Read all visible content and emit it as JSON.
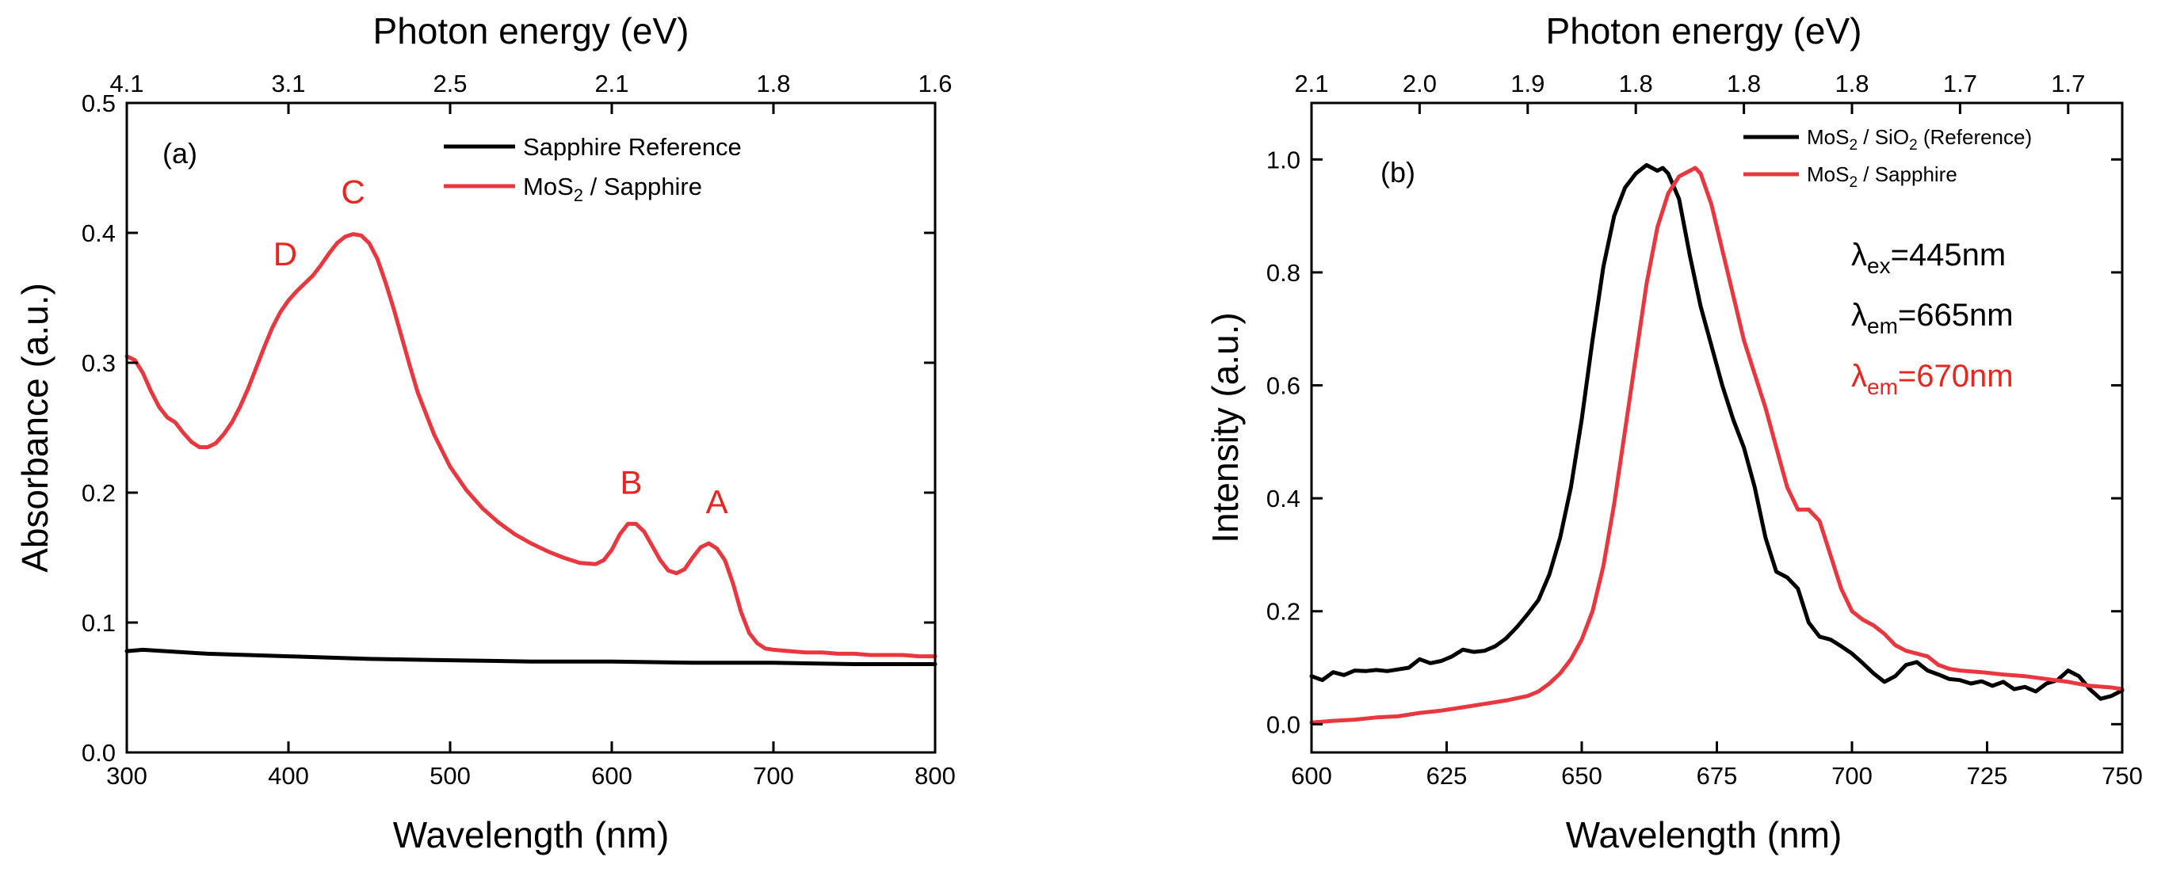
{
  "colors": {
    "black_series": "#000000",
    "red_series": "#e8373f",
    "annotation_red": "#e8251f"
  },
  "chart_data": [
    {
      "type": "line",
      "panel_label": "(a)",
      "xlabel": "Wavelength (nm)",
      "ylabel": "Absorbance (a.u.)",
      "top_axis_label": "Photon energy (eV)",
      "xlim": [
        300,
        800
      ],
      "ylim": [
        0.0,
        0.5
      ],
      "xticks": [
        "300",
        "400",
        "500",
        "600",
        "700",
        "800"
      ],
      "yticks": [
        "0.0",
        "0.1",
        "0.2",
        "0.3",
        "0.4",
        "0.5"
      ],
      "top_ticks": [
        {
          "label": "4.1",
          "wavelength": 300
        },
        {
          "label": "3.1",
          "wavelength": 400
        },
        {
          "label": "2.5",
          "wavelength": 500
        },
        {
          "label": "2.1",
          "wavelength": 600
        },
        {
          "label": "1.8",
          "wavelength": 700
        },
        {
          "label": "1.6",
          "wavelength": 800
        }
      ],
      "legend": [
        {
          "label": "Sapphire Reference",
          "color": "#000000"
        },
        {
          "label": "MoS",
          "sub": "2",
          "label_after": " / Sapphire",
          "color": "#e8373f"
        }
      ],
      "annotations": [
        {
          "text": "D",
          "x": 398,
          "y": 0.375
        },
        {
          "text": "C",
          "x": 440,
          "y": 0.423
        },
        {
          "text": "B",
          "x": 612,
          "y": 0.199
        },
        {
          "text": "A",
          "x": 665,
          "y": 0.184
        }
      ],
      "series": [
        {
          "name": "Sapphire Reference",
          "color": "#000000",
          "x": [
            300,
            310,
            350,
            400,
            450,
            500,
            550,
            600,
            650,
            700,
            750,
            800
          ],
          "y": [
            0.078,
            0.079,
            0.076,
            0.074,
            0.072,
            0.071,
            0.07,
            0.07,
            0.069,
            0.069,
            0.068,
            0.068
          ]
        },
        {
          "name": "MoS2 / Sapphire",
          "color": "#e8373f",
          "x": [
            300,
            305,
            310,
            315,
            320,
            325,
            330,
            335,
            340,
            345,
            350,
            355,
            360,
            365,
            370,
            375,
            380,
            385,
            390,
            395,
            400,
            405,
            410,
            415,
            420,
            425,
            430,
            435,
            440,
            445,
            450,
            455,
            460,
            465,
            470,
            475,
            480,
            490,
            500,
            510,
            520,
            530,
            540,
            550,
            560,
            570,
            580,
            590,
            595,
            600,
            605,
            610,
            615,
            620,
            625,
            630,
            635,
            640,
            645,
            650,
            655,
            660,
            665,
            670,
            675,
            680,
            685,
            690,
            695,
            700,
            710,
            720,
            730,
            740,
            750,
            760,
            770,
            780,
            790,
            800
          ],
          "y": [
            0.305,
            0.302,
            0.292,
            0.278,
            0.266,
            0.258,
            0.254,
            0.246,
            0.239,
            0.235,
            0.235,
            0.238,
            0.245,
            0.254,
            0.266,
            0.28,
            0.296,
            0.312,
            0.327,
            0.339,
            0.348,
            0.355,
            0.361,
            0.367,
            0.375,
            0.384,
            0.392,
            0.397,
            0.399,
            0.398,
            0.392,
            0.38,
            0.362,
            0.342,
            0.32,
            0.298,
            0.277,
            0.245,
            0.22,
            0.202,
            0.188,
            0.177,
            0.168,
            0.161,
            0.155,
            0.15,
            0.146,
            0.145,
            0.148,
            0.156,
            0.168,
            0.176,
            0.176,
            0.17,
            0.159,
            0.148,
            0.14,
            0.138,
            0.141,
            0.15,
            0.158,
            0.161,
            0.157,
            0.148,
            0.13,
            0.108,
            0.092,
            0.084,
            0.08,
            0.079,
            0.078,
            0.077,
            0.077,
            0.076,
            0.076,
            0.075,
            0.075,
            0.075,
            0.074,
            0.074
          ]
        }
      ]
    },
    {
      "type": "line",
      "panel_label": "(b)",
      "xlabel": "Wavelength (nm)",
      "ylabel": "Intensity (a.u.)",
      "top_axis_label": "Photon energy (eV)",
      "xlim": [
        600,
        750
      ],
      "ylim": [
        -0.05,
        1.1
      ],
      "xticks": [
        "600",
        "625",
        "650",
        "675",
        "700",
        "725",
        "750"
      ],
      "yticks": [
        "0.0",
        "0.2",
        "0.4",
        "0.6",
        "0.8",
        "1.0"
      ],
      "top_ticks": [
        {
          "label": "2.1",
          "wavelength": 600
        },
        {
          "label": "2.0",
          "wavelength": 620
        },
        {
          "label": "1.9",
          "wavelength": 640
        },
        {
          "label": "1.8",
          "wavelength": 660
        },
        {
          "label": "1.8",
          "wavelength": 680
        },
        {
          "label": "1.8",
          "wavelength": 700
        },
        {
          "label": "1.7",
          "wavelength": 720
        },
        {
          "label": "1.7",
          "wavelength": 740
        }
      ],
      "legend": [
        {
          "label": "MoS",
          "sub": "2",
          "label_mid": " / SiO",
          "sub2": "2",
          "label_after": " (Reference)",
          "color": "#000000"
        },
        {
          "label": "MoS",
          "sub": "2",
          "label_after": " / Sapphire",
          "color": "#e8373f"
        }
      ],
      "lambda_labels": [
        {
          "symbol": "λ",
          "sub": "ex",
          "value": "=445nm",
          "color": "#000000"
        },
        {
          "symbol": "λ",
          "sub": "em",
          "value": "=665nm",
          "color": "#000000"
        },
        {
          "symbol": "λ",
          "sub": "em",
          "value": "=670nm",
          "color": "#e8251f"
        }
      ],
      "series": [
        {
          "name": "MoS2 / SiO2 (Reference)",
          "color": "#000000",
          "x": [
            600,
            602,
            604,
            606,
            608,
            610,
            612,
            614,
            616,
            618,
            620,
            622,
            624,
            626,
            628,
            630,
            632,
            634,
            636,
            638,
            640,
            642,
            644,
            646,
            648,
            650,
            652,
            654,
            656,
            658,
            660,
            662,
            664,
            665,
            666,
            668,
            670,
            672,
            674,
            676,
            678,
            680,
            682,
            684,
            686,
            688,
            690,
            692,
            694,
            696,
            698,
            700,
            702,
            704,
            706,
            708,
            710,
            712,
            714,
            716,
            718,
            720,
            722,
            724,
            726,
            728,
            730,
            732,
            734,
            736,
            738,
            740,
            742,
            744,
            746,
            748,
            750
          ],
          "y": [
            0.085,
            0.078,
            0.092,
            0.087,
            0.095,
            0.094,
            0.096,
            0.094,
            0.097,
            0.1,
            0.115,
            0.108,
            0.112,
            0.12,
            0.132,
            0.128,
            0.13,
            0.138,
            0.152,
            0.172,
            0.195,
            0.22,
            0.265,
            0.33,
            0.42,
            0.54,
            0.68,
            0.81,
            0.9,
            0.95,
            0.975,
            0.99,
            0.98,
            0.985,
            0.975,
            0.93,
            0.83,
            0.74,
            0.67,
            0.6,
            0.54,
            0.49,
            0.42,
            0.33,
            0.27,
            0.26,
            0.24,
            0.18,
            0.155,
            0.15,
            0.138,
            0.125,
            0.108,
            0.09,
            0.075,
            0.085,
            0.105,
            0.11,
            0.095,
            0.088,
            0.08,
            0.078,
            0.072,
            0.076,
            0.068,
            0.075,
            0.062,
            0.066,
            0.058,
            0.072,
            0.078,
            0.095,
            0.085,
            0.062,
            0.045,
            0.05,
            0.06
          ]
        },
        {
          "name": "MoS2 / Sapphire",
          "color": "#e8373f",
          "x": [
            600,
            604,
            608,
            612,
            616,
            620,
            624,
            628,
            632,
            636,
            640,
            642,
            644,
            646,
            648,
            650,
            652,
            654,
            656,
            658,
            660,
            662,
            664,
            666,
            668,
            670,
            671,
            672,
            674,
            676,
            678,
            680,
            682,
            684,
            686,
            688,
            690,
            692,
            694,
            696,
            698,
            700,
            702,
            704,
            706,
            708,
            710,
            712,
            714,
            716,
            718,
            720,
            724,
            728,
            732,
            736,
            740,
            744,
            748,
            750
          ],
          "y": [
            0.003,
            0.006,
            0.008,
            0.012,
            0.014,
            0.02,
            0.024,
            0.03,
            0.036,
            0.042,
            0.05,
            0.058,
            0.072,
            0.09,
            0.115,
            0.15,
            0.2,
            0.28,
            0.39,
            0.52,
            0.65,
            0.78,
            0.88,
            0.94,
            0.97,
            0.98,
            0.985,
            0.975,
            0.92,
            0.84,
            0.76,
            0.68,
            0.62,
            0.56,
            0.49,
            0.42,
            0.38,
            0.38,
            0.36,
            0.3,
            0.24,
            0.2,
            0.185,
            0.175,
            0.16,
            0.14,
            0.13,
            0.125,
            0.12,
            0.105,
            0.098,
            0.095,
            0.092,
            0.088,
            0.085,
            0.08,
            0.075,
            0.068,
            0.065,
            0.062
          ]
        }
      ]
    }
  ]
}
